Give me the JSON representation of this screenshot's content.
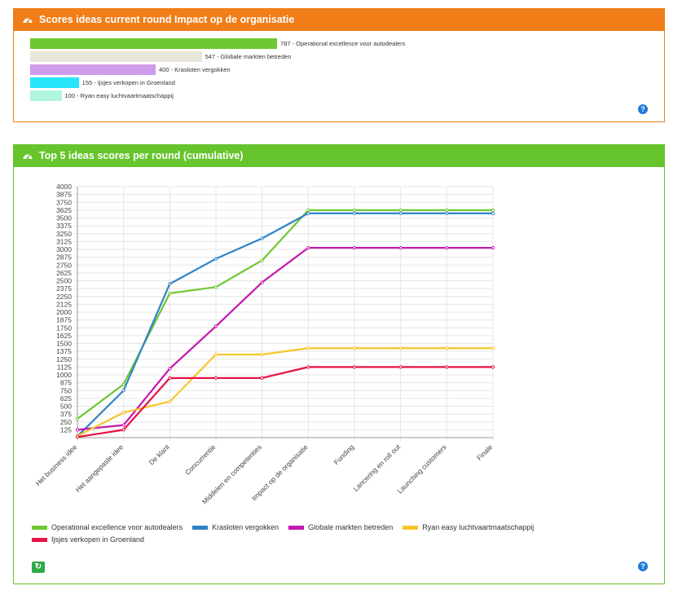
{
  "panel1": {
    "title": "Scores ideas current round Impact op de organisatie",
    "help": "?",
    "bars": [
      {
        "value": 787,
        "label": "787 - Operational excellence voor autodealers",
        "color": "#6fc731"
      },
      {
        "value": 547,
        "label": "547 - Globale markten betreden",
        "color": "#e8e5d9"
      },
      {
        "value": 400,
        "label": "400 - Krasloten vergokken",
        "color": "#cf9ceb"
      },
      {
        "value": 155,
        "label": "155 - Ijsjes verkopen in Groenland",
        "color": "#27e6fb"
      },
      {
        "value": 100,
        "label": "100 - Ryan easy luchtvaartmaatschappij",
        "color": "#b0f5dc"
      }
    ]
  },
  "panel2": {
    "title": "Top 5 ideas scores per round (cumulative)",
    "help": "?",
    "refresh_icon": "↻"
  },
  "chart_data": {
    "type": "line",
    "title": "Top 5 ideas scores per round (cumulative)",
    "categories": [
      "Het business idee",
      "Het aangepaste idee",
      "De klant",
      "Concurrentie",
      "Middelen en competenties",
      "Impact op de organisatie",
      "Funding",
      "Lancering en roll out",
      "Launching customers",
      "Finale"
    ],
    "yticks": [
      125,
      250,
      375,
      500,
      625,
      750,
      875,
      1000,
      1125,
      1250,
      1375,
      1500,
      1625,
      1750,
      1875,
      2000,
      2125,
      2250,
      2375,
      2500,
      2625,
      2750,
      2875,
      3000,
      3125,
      3250,
      3375,
      3500,
      3625,
      3750,
      3875,
      4000
    ],
    "ylim": [
      0,
      4000
    ],
    "grid": true,
    "legend_position": "bottom",
    "series": [
      {
        "name": "Operational excellence voor autodealers",
        "color": "#6fc731",
        "values": [
          300,
          850,
          2300,
          2400,
          2825,
          3625,
          3625,
          3625,
          3625,
          3625
        ]
      },
      {
        "name": "Krasloten vergokken",
        "color": "#2f83c6",
        "values": [
          20,
          750,
          2450,
          2850,
          3175,
          3575,
          3575,
          3575,
          3575,
          3575
        ]
      },
      {
        "name": "Globale markten betreden",
        "color": "#c517b0",
        "values": [
          125,
          200,
          1100,
          1775,
          2475,
          3025,
          3025,
          3025,
          3025,
          3025
        ]
      },
      {
        "name": "Ryan easy luchtvaartmaatschappij",
        "color": "#f5c62a",
        "values": [
          25,
          400,
          575,
          1325,
          1325,
          1425,
          1425,
          1425,
          1425,
          1425
        ]
      },
      {
        "name": "Ijsjes verkopen in Groenland",
        "color": "#ea1245",
        "values": [
          10,
          125,
          950,
          950,
          950,
          1125,
          1125,
          1125,
          1125,
          1125
        ]
      }
    ]
  }
}
